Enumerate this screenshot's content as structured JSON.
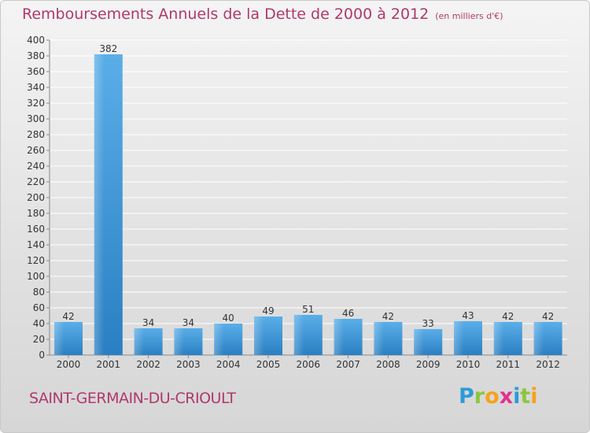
{
  "title": "Remboursements Annuels de la Dette de 2000 à 2012",
  "unit": "(en milliers d'€)",
  "commune": "SAINT-GERMAIN-DU-CRIOULT",
  "logo": {
    "letters": [
      {
        "ch": "P",
        "color": "#2e9bd6"
      },
      {
        "ch": "r",
        "color": "#8cc63f"
      },
      {
        "ch": "o",
        "color": "#f7a21b"
      },
      {
        "ch": "x",
        "color": "#e2328f"
      },
      {
        "ch": "i",
        "color": "#2e9bd6"
      },
      {
        "ch": "t",
        "color": "#8cc63f"
      },
      {
        "ch": "i",
        "color": "#f7a21b"
      }
    ]
  },
  "colors": {
    "title": "#b0386d",
    "bar_light": "#5aaee8",
    "bar_dark": "#2a7fc2"
  },
  "chart_data": {
    "type": "bar",
    "title": "Remboursements Annuels de la Dette de 2000 à 2012",
    "categories": [
      "2000",
      "2001",
      "2002",
      "2003",
      "2004",
      "2005",
      "2006",
      "2007",
      "2008",
      "2009",
      "2010",
      "2011",
      "2012"
    ],
    "values": [
      42,
      382,
      34,
      34,
      40,
      49,
      51,
      46,
      42,
      33,
      43,
      42,
      42
    ],
    "ylim": [
      0,
      400
    ],
    "yticks": [
      0,
      20,
      40,
      60,
      80,
      100,
      120,
      140,
      160,
      180,
      200,
      220,
      240,
      260,
      280,
      300,
      320,
      340,
      360,
      380,
      400
    ],
    "grid": true,
    "legend": "none"
  }
}
